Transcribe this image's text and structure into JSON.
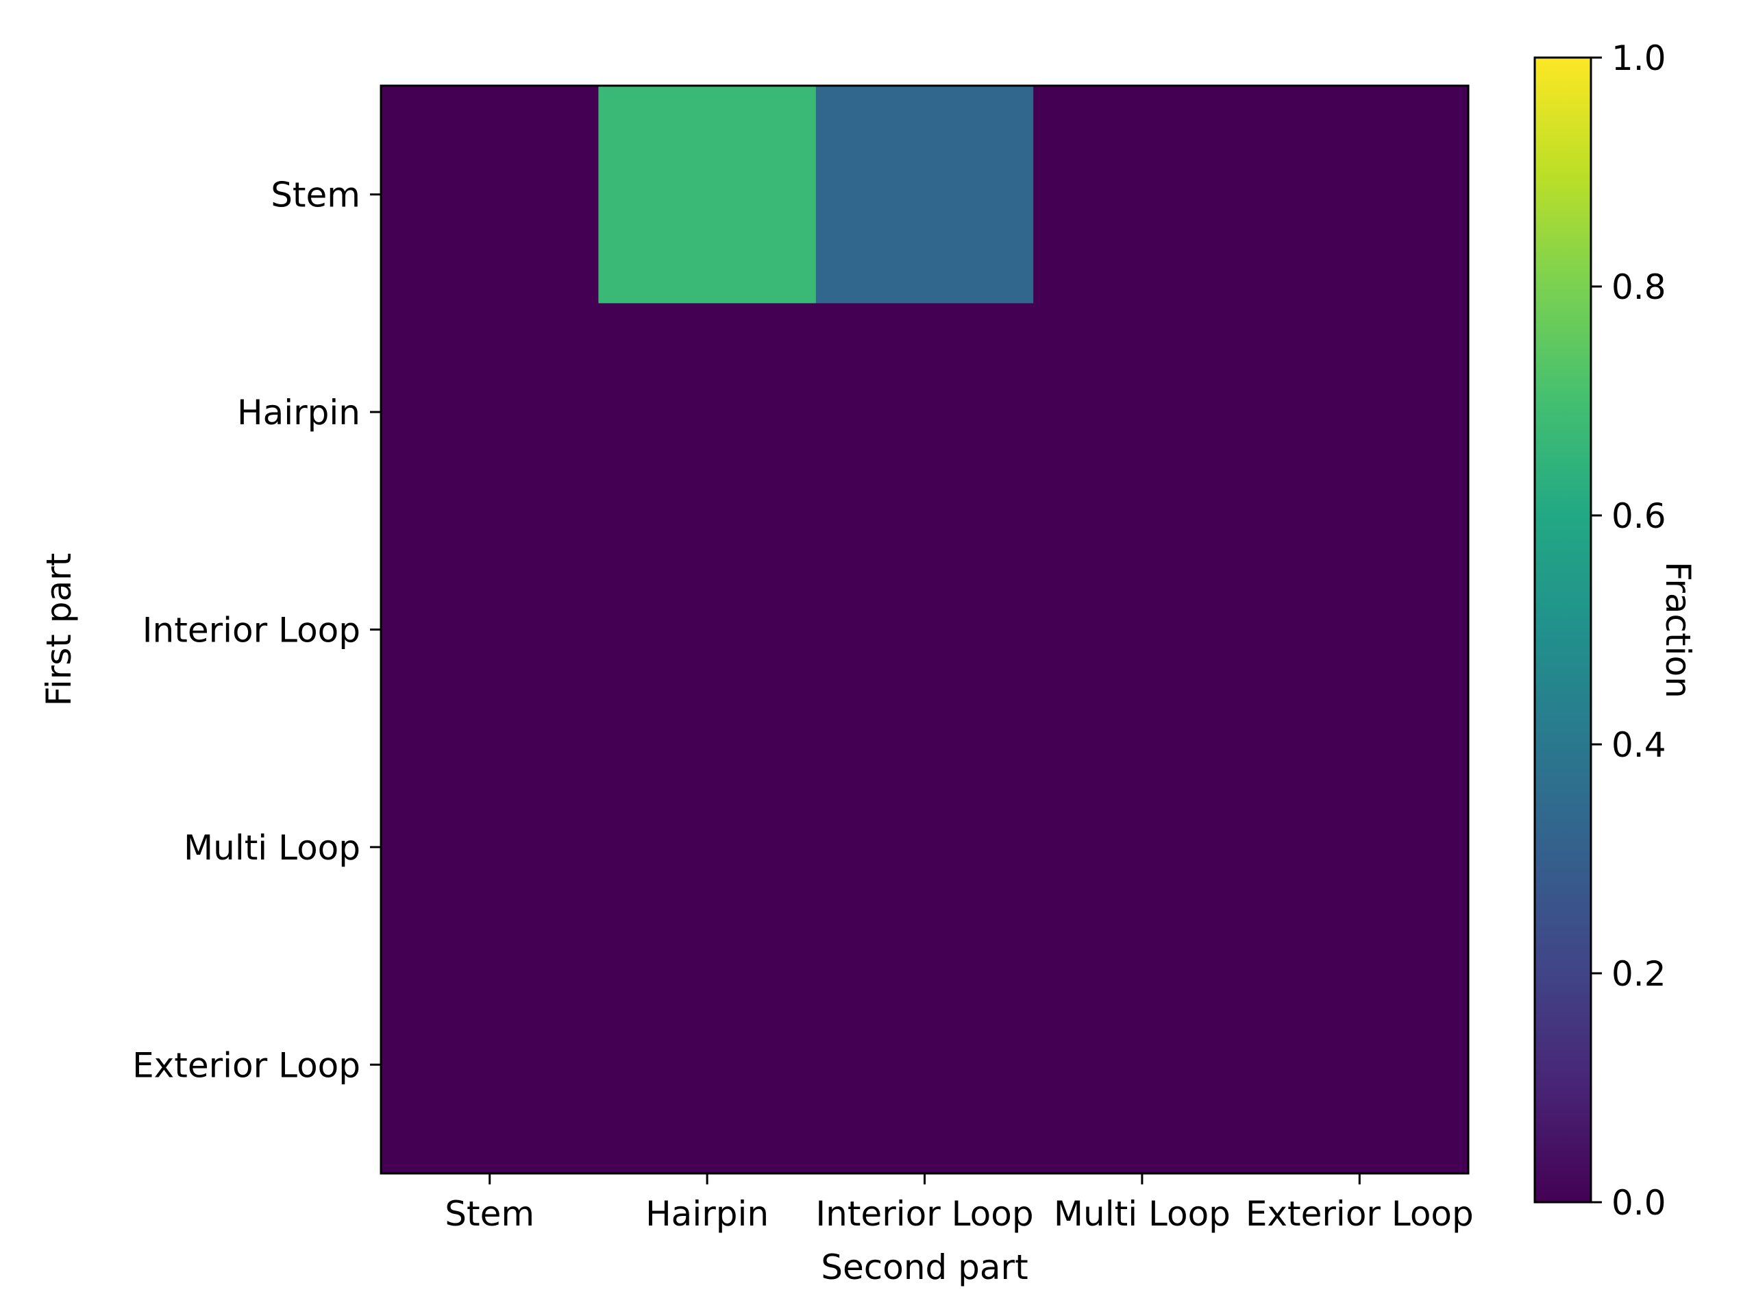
{
  "chart_data": {
    "type": "heatmap",
    "x_categories": [
      "Stem",
      "Hairpin",
      "Interior Loop",
      "Multi Loop",
      "Exterior Loop"
    ],
    "y_categories": [
      "Stem",
      "Hairpin",
      "Interior Loop",
      "Multi Loop",
      "Exterior Loop"
    ],
    "values": [
      [
        0.0,
        0.67,
        0.33,
        0.0,
        0.0
      ],
      [
        0.0,
        0.0,
        0.0,
        0.0,
        0.0
      ],
      [
        0.0,
        0.0,
        0.0,
        0.0,
        0.0
      ],
      [
        0.0,
        0.0,
        0.0,
        0.0,
        0.0
      ],
      [
        0.0,
        0.0,
        0.0,
        0.0,
        0.0
      ]
    ],
    "xlabel": "Second part",
    "ylabel": "First part",
    "colorbar": {
      "label": "Fraction",
      "range": [
        0.0,
        1.0
      ],
      "ticks": [
        "0.0",
        "0.2",
        "0.4",
        "0.6",
        "0.8",
        "1.0"
      ],
      "colormap": "viridis"
    },
    "grid": false
  }
}
